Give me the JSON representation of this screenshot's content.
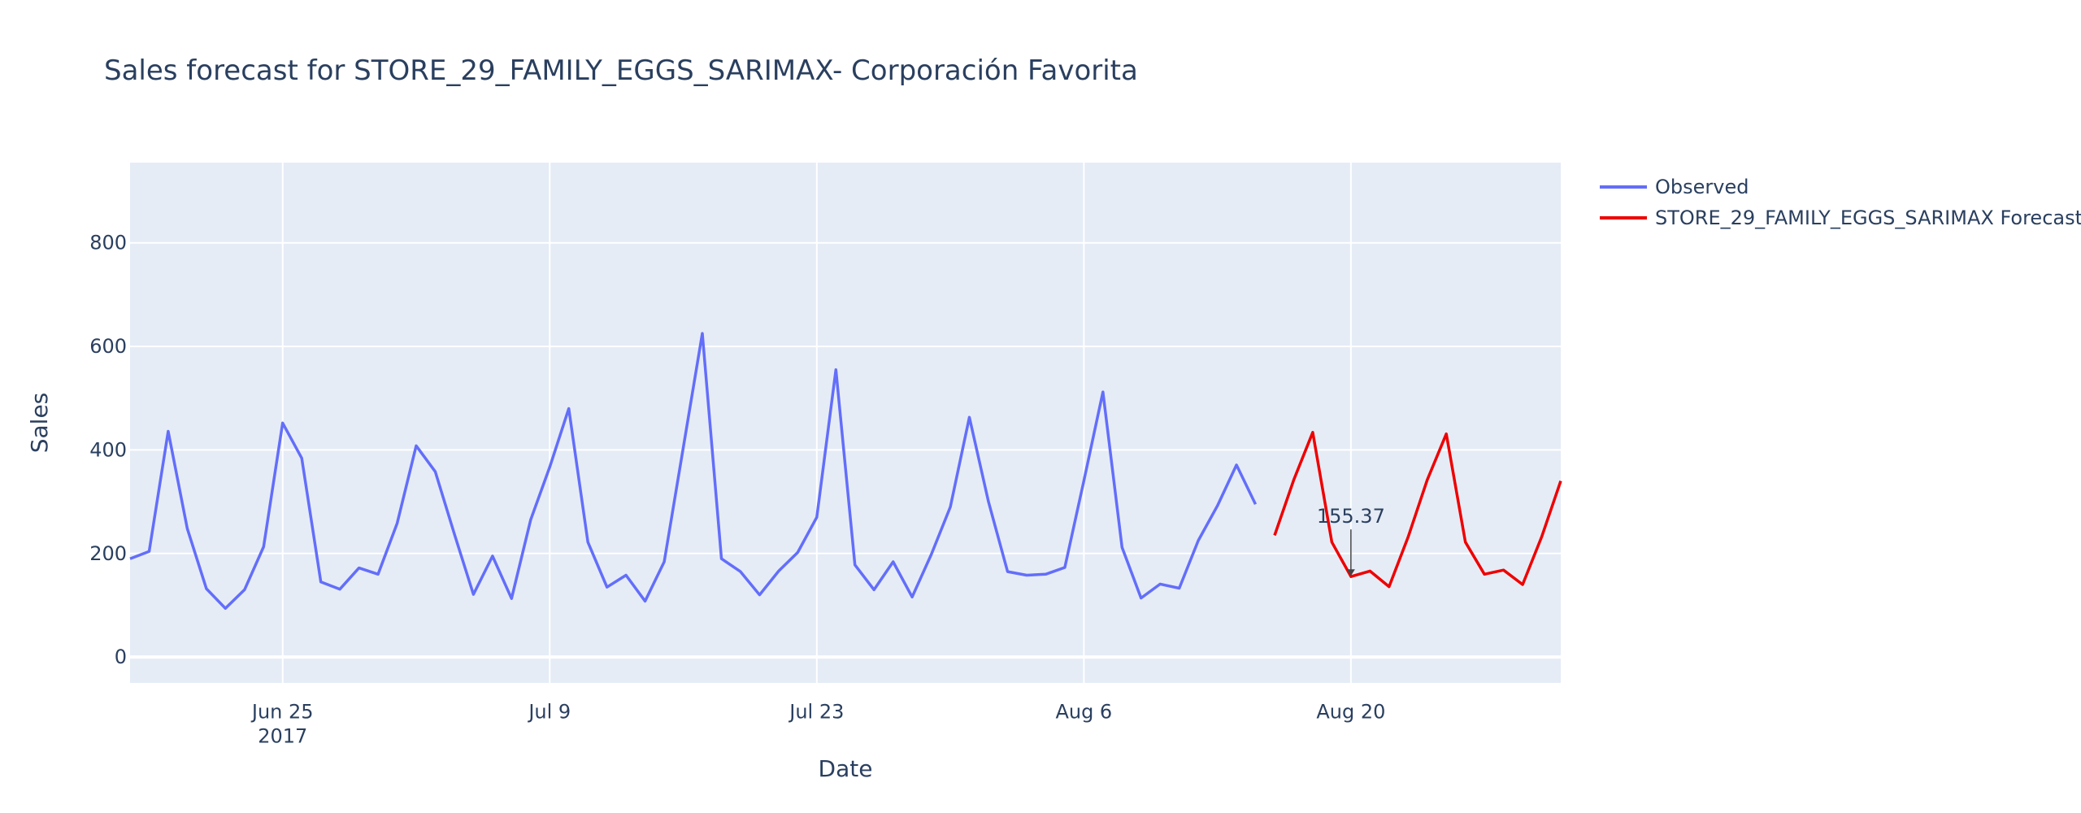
{
  "chart_data": {
    "type": "line",
    "title": "Sales forecast for STORE_29_FAMILY_EGGS_SARIMAX- Corporación Favorita",
    "xlabel": "Date",
    "ylabel": "Sales",
    "xlim": [
      "2017-06-17",
      "2017-08-31"
    ],
    "ylim": [
      -50,
      955
    ],
    "x_ticks": [
      {
        "date": "2017-06-25",
        "label": "Jun 25",
        "sublabel": "2017"
      },
      {
        "date": "2017-07-09",
        "label": "Jul 9"
      },
      {
        "date": "2017-07-23",
        "label": "Jul 23"
      },
      {
        "date": "2017-08-06",
        "label": "Aug 6"
      },
      {
        "date": "2017-08-20",
        "label": "Aug 20"
      }
    ],
    "y_ticks": [
      0,
      200,
      400,
      600,
      800
    ],
    "grid": true,
    "legend_position": "top-right",
    "series": [
      {
        "name": "Observed",
        "color": "#636efa",
        "start_date": "2017-06-17",
        "values": [
          190,
          204,
          436,
          248,
          132,
          94,
          130,
          213,
          452,
          384,
          145,
          131,
          172,
          160,
          258,
          408,
          358,
          238,
          121,
          195,
          113,
          265,
          367,
          480,
          222,
          135,
          158,
          108,
          184,
          404,
          625,
          190,
          165,
          120,
          166,
          202,
          270,
          555,
          178,
          130,
          184,
          116,
          198,
          290,
          463,
          300,
          165,
          158,
          160,
          173,
          340,
          512,
          212,
          114,
          141,
          133,
          225,
          292,
          371,
          295
        ]
      },
      {
        "name": "STORE_29_FAMILY_EGGS_SARIMAX Forecast",
        "color": "#ee0000",
        "start_date": "2017-08-16",
        "values": [
          235,
          342,
          434,
          222,
          155.37,
          166,
          136,
          232,
          342,
          431,
          222,
          160,
          168,
          140,
          232,
          340
        ]
      }
    ],
    "annotations": [
      {
        "date": "2017-08-20",
        "value": 155.37,
        "text": "155.37"
      }
    ]
  }
}
